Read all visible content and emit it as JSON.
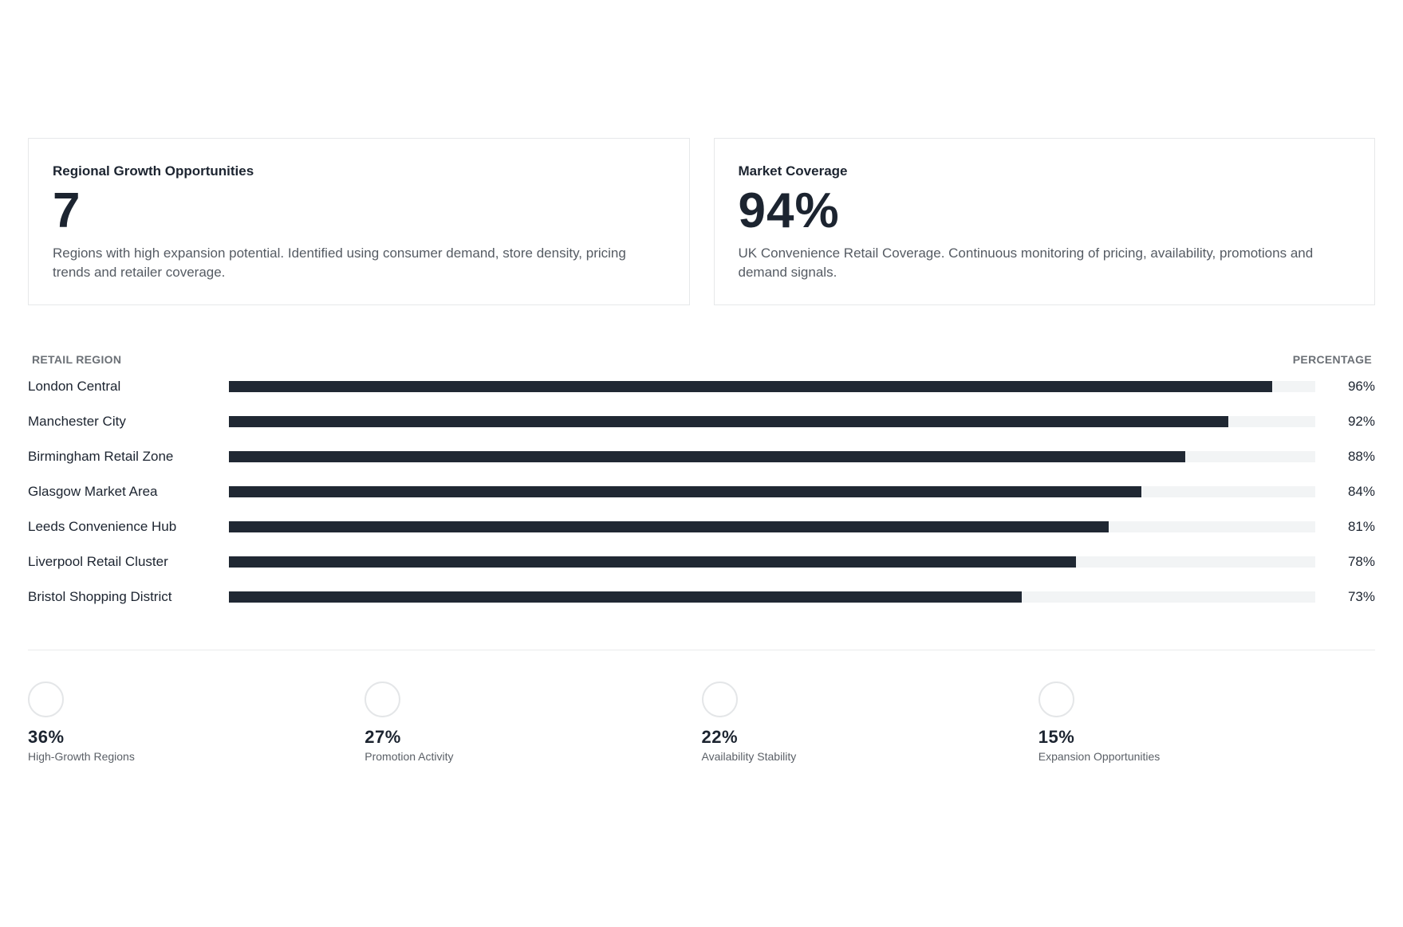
{
  "cards": [
    {
      "title": "Regional Growth Opportunities",
      "value": "7",
      "description": "Regions with high expansion potential. Identified using consumer demand, store density, pricing trends and retailer coverage."
    },
    {
      "title": "Market Coverage",
      "value": "94%",
      "description": "UK Convenience Retail Coverage. Continuous monitoring of pricing, availability, promotions and demand signals."
    }
  ],
  "table": {
    "region_header": "RETAIL REGION",
    "percentage_header": "PERCENTAGE",
    "rows": [
      {
        "region": "London Central",
        "percent": 96,
        "percent_label": "96%"
      },
      {
        "region": "Manchester City",
        "percent": 92,
        "percent_label": "92%"
      },
      {
        "region": "Birmingham Retail Zone",
        "percent": 88,
        "percent_label": "88%"
      },
      {
        "region": "Glasgow Market Area",
        "percent": 84,
        "percent_label": "84%"
      },
      {
        "region": "Leeds Convenience Hub",
        "percent": 81,
        "percent_label": "81%"
      },
      {
        "region": "Liverpool Retail Cluster",
        "percent": 78,
        "percent_label": "78%"
      },
      {
        "region": "Bristol Shopping District",
        "percent": 73,
        "percent_label": "73%"
      }
    ]
  },
  "stats": [
    {
      "value": "36%",
      "label": "High-Growth Regions"
    },
    {
      "value": "27%",
      "label": "Promotion Activity"
    },
    {
      "value": "22%",
      "label": "Availability Stability"
    },
    {
      "value": "15%",
      "label": "Expansion Opportunities"
    }
  ],
  "colors": {
    "bar_fill": "#202833",
    "bar_track": "#f2f4f5",
    "text_primary": "#1c2430",
    "text_muted": "#555b63"
  }
}
